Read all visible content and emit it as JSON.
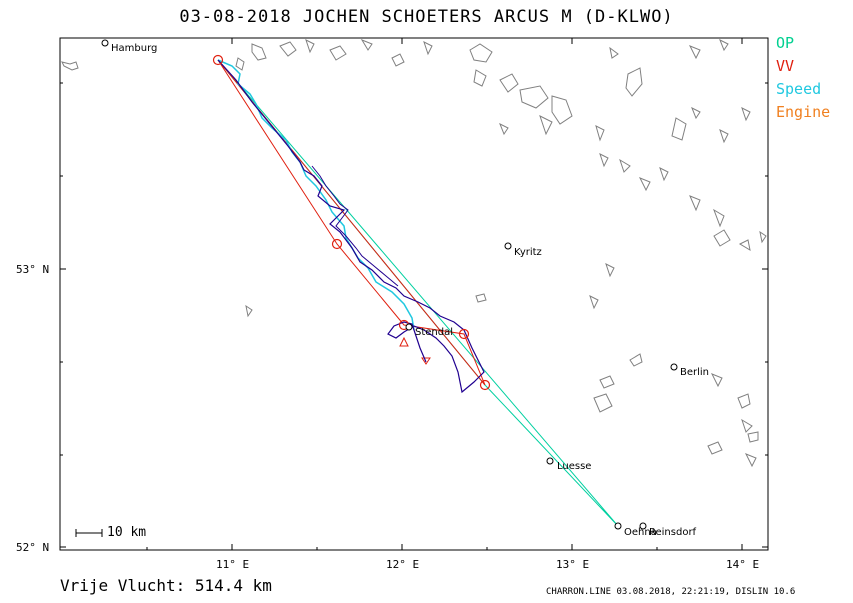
{
  "title": "03-08-2018   JOCHEN SCHOETERS   ARCUS M (D-KLWO)",
  "legend": [
    {
      "label": "OP",
      "color": "#00d090"
    },
    {
      "label": "VV",
      "color": "#e02010"
    },
    {
      "label": "Speed",
      "color": "#20c8e0"
    },
    {
      "label": "Engine",
      "color": "#f08020"
    }
  ],
  "axes": {
    "x_ticks": [
      "11° E",
      "12° E",
      "13° E",
      "14° E"
    ],
    "y_ticks": [
      "53° N",
      "52° N"
    ]
  },
  "places": [
    {
      "name": "Hamburg"
    },
    {
      "name": "Kyritz"
    },
    {
      "name": "Stendal"
    },
    {
      "name": "Berlin"
    },
    {
      "name": "Luesse"
    },
    {
      "name": "Oehna"
    },
    {
      "name": "Reinsdorf"
    }
  ],
  "scale_bar": "10  km",
  "distance_text": "Vrije Vlucht:  514.4 km",
  "footer": "CHARRON.LINE 03.08.2018, 22:21:19, DISLIN 10.6",
  "colors": {
    "track": "#200090",
    "op": "#00d0a0",
    "vv": "#e02010",
    "speed": "#20c8e0",
    "coast": "#808080"
  }
}
